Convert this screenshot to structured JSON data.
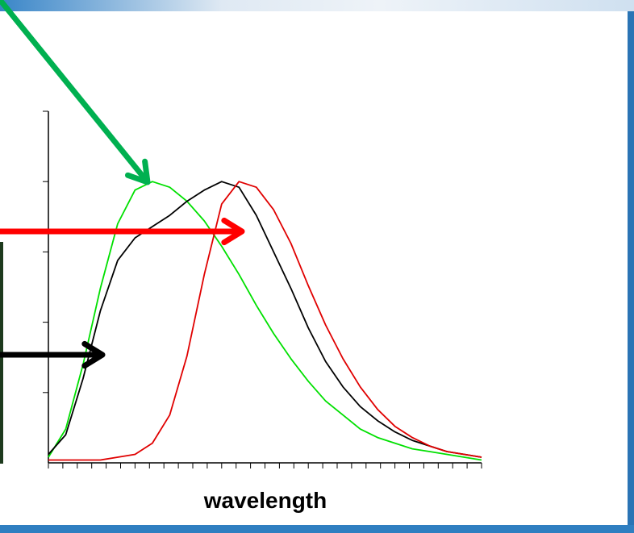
{
  "chart_data": {
    "type": "line",
    "title": "",
    "xlabel": "wavelength",
    "ylabel": "",
    "xlim": [
      0,
      100
    ],
    "ylim": [
      0,
      1.25
    ],
    "x_ticks": 30,
    "y_ticks": 5,
    "grid": false,
    "series": [
      {
        "color": "#00e000",
        "x": [
          0,
          4,
          8,
          12,
          16,
          20,
          24,
          28,
          32,
          36,
          40,
          44,
          48,
          52,
          56,
          60,
          64,
          68,
          72,
          76,
          80,
          84,
          88,
          92,
          96,
          100
        ],
        "y": [
          0.02,
          0.12,
          0.35,
          0.62,
          0.85,
          0.97,
          1.0,
          0.98,
          0.93,
          0.86,
          0.77,
          0.67,
          0.56,
          0.46,
          0.37,
          0.29,
          0.22,
          0.17,
          0.12,
          0.09,
          0.07,
          0.05,
          0.04,
          0.03,
          0.02,
          0.01
        ]
      },
      {
        "color": "#000000",
        "x": [
          0,
          4,
          8,
          12,
          16,
          20,
          24,
          28,
          32,
          36,
          40,
          44,
          48,
          52,
          56,
          60,
          64,
          68,
          72,
          76,
          80,
          84,
          88,
          92,
          96,
          100
        ],
        "y": [
          0.03,
          0.1,
          0.3,
          0.54,
          0.72,
          0.8,
          0.84,
          0.88,
          0.93,
          0.97,
          1.0,
          0.98,
          0.88,
          0.75,
          0.62,
          0.48,
          0.36,
          0.27,
          0.2,
          0.15,
          0.11,
          0.08,
          0.06,
          0.04,
          0.03,
          0.02
        ]
      },
      {
        "color": "#e00000",
        "x": [
          0,
          4,
          8,
          12,
          16,
          20,
          24,
          28,
          32,
          36,
          40,
          44,
          48,
          52,
          56,
          60,
          64,
          68,
          72,
          76,
          80,
          84,
          88,
          92,
          96,
          100
        ],
        "y": [
          0.01,
          0.01,
          0.01,
          0.01,
          0.02,
          0.03,
          0.07,
          0.17,
          0.38,
          0.67,
          0.92,
          1.0,
          0.98,
          0.9,
          0.78,
          0.63,
          0.49,
          0.37,
          0.27,
          0.19,
          0.13,
          0.09,
          0.06,
          0.04,
          0.03,
          0.02
        ]
      }
    ],
    "annotations": [
      {
        "type": "arrow",
        "color": "#00b050",
        "target_series": 0
      },
      {
        "type": "arrow",
        "color": "#ff0000",
        "target_series": 2
      },
      {
        "type": "arrow",
        "color": "#000000",
        "target_series": 1
      }
    ]
  }
}
